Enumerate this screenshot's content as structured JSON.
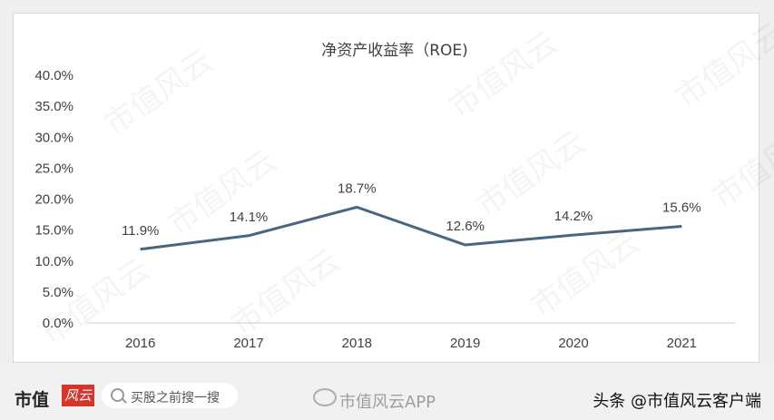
{
  "chart_data": {
    "type": "line",
    "title": "净资产收益率（ROE)",
    "categories": [
      "2016",
      "2017",
      "2018",
      "2019",
      "2020",
      "2021"
    ],
    "series": [
      {
        "values": [
          11.9,
          14.1,
          18.7,
          12.6,
          14.2,
          15.6
        ]
      }
    ],
    "data_labels": [
      "11.9%",
      "14.1%",
      "18.7%",
      "12.6%",
      "14.2%",
      "15.6%"
    ],
    "y_ticks": [
      "0.0%",
      "5.0%",
      "10.0%",
      "15.0%",
      "20.0%",
      "25.0%",
      "30.0%",
      "35.0%",
      "40.0%"
    ],
    "ylim": [
      0,
      40
    ],
    "grid": false,
    "legend": "none",
    "colors": {
      "line": "#4a6580",
      "text": "#404040",
      "axis": "#d0d0d0"
    }
  },
  "watermark": "市值风云",
  "footer": {
    "brand": "市值",
    "brand_stamp": "风云",
    "search_placeholder": "买股之前搜一搜",
    "weibo_label": "市值风云APP",
    "source": "头条 @市值风云客户端"
  }
}
